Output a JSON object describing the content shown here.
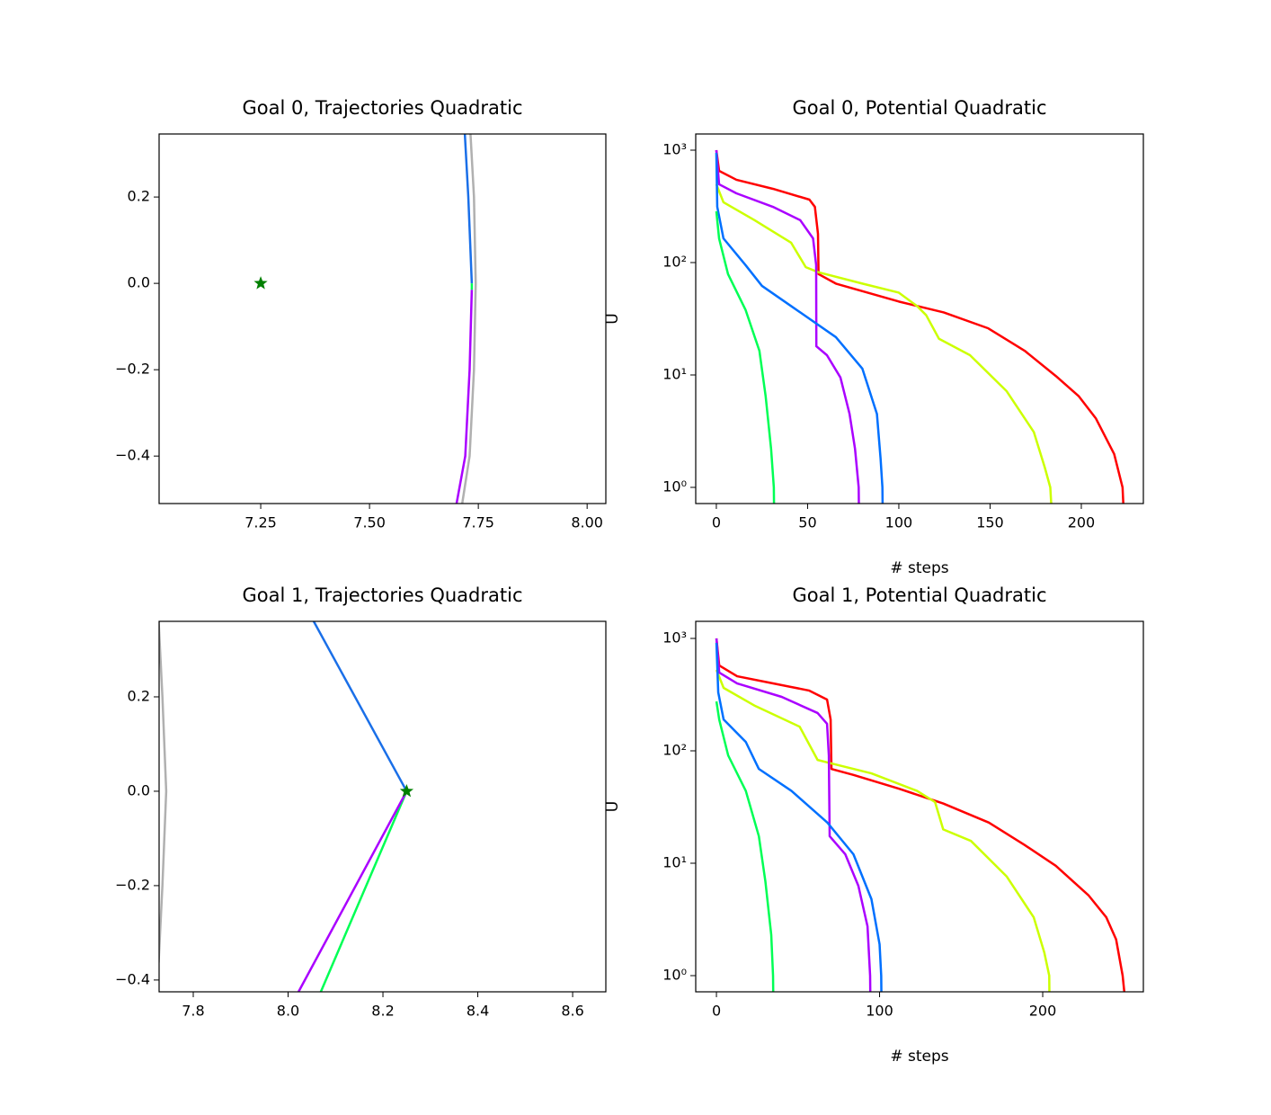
{
  "chart_data": [
    {
      "type": "line",
      "title": "Goal 0, Trajectories Quadratic",
      "xlim": [
        7.0165,
        8.043
      ],
      "ylim": [
        -0.51,
        0.346
      ],
      "xticks": [
        7.25,
        {
          "value": 7.5,
          "label": "7.50"
        },
        7.75,
        {
          "value": 8,
          "label": "8.00"
        }
      ],
      "yticks": [
        {
          "value": -0.4,
          "label": "−0.4"
        },
        {
          "value": -0.2,
          "label": "−0.2"
        },
        {
          "value": 0,
          "label": "0.0"
        },
        0.2
      ],
      "series": [
        {
          "color": "#b0b0b0",
          "x": [
            7.732,
            7.74,
            7.744,
            7.74,
            7.73,
            7.713
          ],
          "values": [
            0.346,
            0.2,
            0.0,
            -0.2,
            -0.4,
            -0.51
          ]
        },
        {
          "color": "#1a6fe8",
          "x": [
            7.719,
            7.727,
            7.735
          ],
          "values": [
            0.346,
            0.2,
            0.0
          ]
        },
        {
          "color": "#00ff55",
          "x": [
            7.735,
            7.735
          ],
          "values": [
            0.0,
            -0.015
          ]
        },
        {
          "color": "#aa00ff",
          "x": [
            7.735,
            7.73,
            7.72,
            7.7
          ],
          "values": [
            -0.015,
            -0.2,
            -0.4,
            -0.51
          ]
        },
        {
          "color": "#008000",
          "marker": "*",
          "x": [
            7.25
          ],
          "values": [
            0
          ]
        }
      ]
    },
    {
      "type": "line",
      "title": "Goal 0, Potential Quadratic",
      "xlabel": "# steps",
      "ylabel": "U",
      "log_y": true,
      "xlim": [
        -11.3,
        234
      ],
      "ylim": [
        0.718,
        1393
      ],
      "xticks": [
        0,
        50,
        100,
        150,
        200
      ],
      "yticks": [
        {
          "value": 1,
          "label": "10⁰"
        },
        {
          "value": 10,
          "label": "10¹"
        },
        {
          "value": 100,
          "label": "10²"
        },
        {
          "value": 1000,
          "label": "10³"
        }
      ],
      "series": [
        {
          "color": "#ff0000",
          "x": [
            0,
            1.5,
            11,
            31,
            51,
            54,
            55.7,
            56,
            65.5,
            100,
            124.6,
            149,
            169,
            186,
            198.5,
            208,
            218,
            222.6,
            223
          ],
          "values": [
            1000,
            655,
            545,
            453,
            363,
            313,
            180,
            79,
            65,
            45,
            36,
            26,
            16.4,
            9.8,
            6.5,
            4.1,
            1.98,
            1,
            0.72
          ]
        },
        {
          "color": "#ccff00",
          "x": [
            0,
            3.9,
            21,
            41,
            49,
            56,
            80,
            100,
            110,
            115,
            122,
            139,
            159,
            174,
            180,
            183,
            183.5
          ],
          "values": [
            497,
            344,
            238,
            150,
            91,
            82,
            65,
            54,
            41,
            34,
            21,
            15,
            7.2,
            3.1,
            1.5,
            1,
            0.72
          ]
        },
        {
          "color": "#aa00ff",
          "x": [
            0,
            1.5,
            11,
            31,
            46,
            53,
            54.7,
            54.8,
            60.6,
            68,
            73,
            76,
            78,
            78.1
          ],
          "values": [
            1000,
            497,
            413,
            313,
            238,
            164,
            95,
            18,
            15,
            9.5,
            4.5,
            2.2,
            1,
            0.72
          ]
        },
        {
          "color": "#0070ff",
          "x": [
            0,
            0.5,
            3.9,
            16,
            25,
            41,
            65.5,
            80,
            88,
            90,
            91,
            91.1
          ],
          "values": [
            946,
            313,
            164,
            95,
            62,
            41,
            21.7,
            11.4,
            4.5,
            1.8,
            1,
            0.72
          ]
        },
        {
          "color": "#00ff55",
          "x": [
            0,
            1.5,
            6.4,
            16,
            23.6,
            27,
            30,
            31.5,
            31.6
          ],
          "values": [
            286,
            164,
            79,
            38,
            16.4,
            6.5,
            2.2,
            1,
            0.72
          ]
        }
      ]
    },
    {
      "type": "line",
      "title": "Goal 1, Trajectories Quadratic",
      "xlim": [
        7.728,
        8.67
      ],
      "ylim": [
        -0.425,
        0.36
      ],
      "xticks": [
        7.8,
        {
          "value": 8,
          "label": "8.0"
        },
        8.2,
        8.4,
        8.6
      ],
      "yticks": [
        {
          "value": -0.4,
          "label": "−0.4"
        },
        {
          "value": -0.2,
          "label": "−0.2"
        },
        {
          "value": 0,
          "label": "0.0"
        },
        0.2
      ],
      "series": [
        {
          "color": "#b0b0b0",
          "x": [
            7.727,
            7.735,
            7.743,
            7.735,
            7.727,
            7.71
          ],
          "values": [
            0.36,
            0.2,
            0.0,
            -0.2,
            -0.362,
            -0.425
          ]
        },
        {
          "color": "#1a6fe8",
          "x": [
            8.054,
            8.25
          ],
          "values": [
            0.36,
            0.0
          ]
        },
        {
          "color": "#00ff55",
          "x": [
            8.25,
            8.069
          ],
          "values": [
            0.0,
            -0.425
          ]
        },
        {
          "color": "#aa00ff",
          "x": [
            8.25,
            8.022
          ],
          "values": [
            0.0,
            -0.425
          ]
        },
        {
          "color": "#008000",
          "marker": "*",
          "x": [
            8.25
          ],
          "values": [
            0
          ]
        }
      ]
    },
    {
      "type": "line",
      "title": "Goal 1, Potential Quadratic",
      "xlabel": "# steps",
      "ylabel": "U",
      "log_y": true,
      "xlim": [
        -12.7,
        261.7
      ],
      "ylim": [
        0.718,
        1419
      ],
      "xticks": [
        0,
        100,
        200
      ],
      "yticks": [
        {
          "value": 1,
          "label": "10⁰"
        },
        {
          "value": 10,
          "label": "10¹"
        },
        {
          "value": 100,
          "label": "10²"
        },
        {
          "value": 1000,
          "label": "10³"
        }
      ],
      "series": [
        {
          "color": "#ff0000",
          "x": [
            0,
            1.7,
            12.7,
            34.7,
            56.7,
            67.8,
            70,
            70.5,
            84,
            112,
            139,
            167,
            189,
            208,
            228,
            239,
            245,
            249,
            250
          ],
          "values": [
            1000,
            575,
            461,
            398,
            344,
            286,
            190,
            69,
            61,
            46,
            34,
            23,
            14.5,
            9.5,
            5.2,
            3.3,
            2.1,
            1,
            0.72
          ]
        },
        {
          "color": "#ccff00",
          "x": [
            0,
            4.4,
            23.7,
            51,
            62,
            67.8,
            95,
            123,
            134,
            139,
            156,
            178,
            194.5,
            201,
            204,
            204.1
          ],
          "values": [
            525,
            363,
            251,
            164,
            83,
            79,
            63,
            44,
            35,
            20,
            15.8,
            7.6,
            3.3,
            1.6,
            1,
            0.72
          ]
        },
        {
          "color": "#aa00ff",
          "x": [
            0,
            1.7,
            12.7,
            40,
            62,
            67.8,
            68.9,
            69.4,
            79,
            87,
            92.6,
            94.2,
            94.3
          ],
          "values": [
            1000,
            497,
            398,
            302,
            217,
            174,
            91,
            17.4,
            12,
            6.3,
            2.75,
            1,
            0.72
          ]
        },
        {
          "color": "#0070ff",
          "x": [
            0,
            1.1,
            4.4,
            18,
            26,
            46,
            68,
            84,
            95,
            100,
            101,
            101.1
          ],
          "values": [
            912,
            331,
            190,
            120,
            69,
            44,
            23,
            12,
            4.8,
            1.9,
            1,
            0.72
          ]
        },
        {
          "color": "#00ff55",
          "x": [
            0,
            1.7,
            7.2,
            18,
            26,
            30,
            33.6,
            34.7,
            34.8
          ],
          "values": [
            275,
            190,
            91,
            44,
            17.4,
            6.9,
            2.3,
            1,
            0.72
          ]
        }
      ]
    }
  ]
}
